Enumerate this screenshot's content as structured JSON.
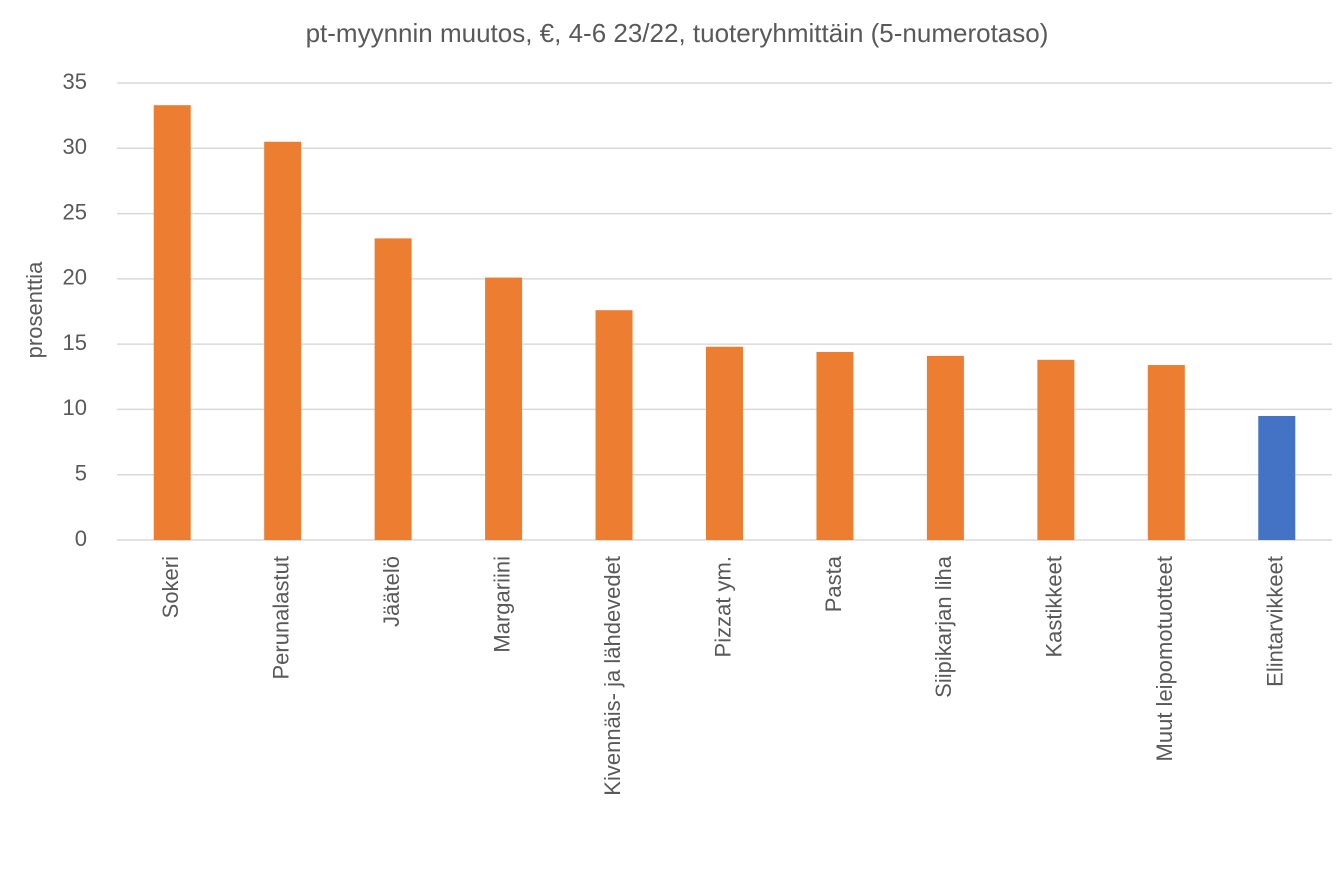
{
  "chart_data": {
    "type": "bar",
    "title": "pt-myynnin muutos, €, 4-6 23/22, tuoteryhmittäin (5-numerotaso)",
    "y_label": "prosenttia",
    "categories": [
      "Sokeri",
      "Perunalastut",
      "Jäätelö",
      "Margariini",
      "Kivennäis- ja lähdevedet",
      "Pizzat ym.",
      "Pasta",
      "Siipikarjan liha",
      "Kastikkeet",
      "Muut leipomotuotteet",
      "Elintarvikkeet"
    ],
    "values": [
      33.3,
      30.5,
      23.1,
      20.1,
      17.6,
      14.8,
      14.4,
      14.1,
      13.8,
      13.4,
      9.5
    ],
    "colors": [
      "#ed7d31",
      "#ed7d31",
      "#ed7d31",
      "#ed7d31",
      "#ed7d31",
      "#ed7d31",
      "#ed7d31",
      "#ed7d31",
      "#ed7d31",
      "#ed7d31",
      "#4472c4"
    ],
    "ylim": [
      0,
      35
    ],
    "yticks": [
      0,
      5,
      10,
      15,
      20,
      25,
      30,
      35
    ],
    "grid": true
  }
}
